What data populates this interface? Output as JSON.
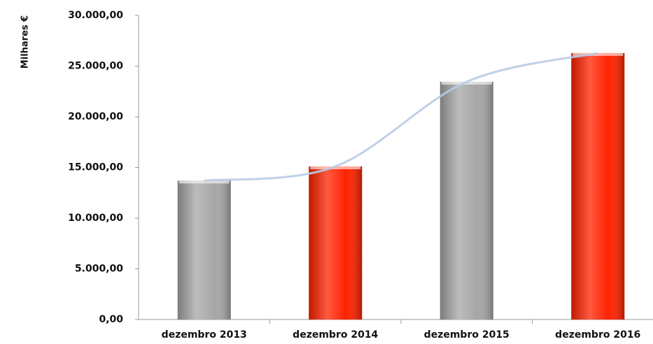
{
  "chart_data": {
    "type": "bar",
    "y_label": "Milhares €",
    "categories": [
      "dezembro 2013",
      "dezembro 2014",
      "dezembro 2015",
      "dezembro 2016"
    ],
    "values": [
      13700,
      15100,
      23450,
      26280
    ],
    "colors": [
      "#a6a6a6",
      "#ff2200",
      "#a6a6a6",
      "#ff2200"
    ],
    "trendline_color": "#b8cce4",
    "ylim": [
      0,
      30000
    ],
    "yticks": [
      {
        "value": 0,
        "label": "0,00"
      },
      {
        "value": 5000,
        "label": "5.000,00"
      },
      {
        "value": 10000,
        "label": "10.000,00"
      },
      {
        "value": 15000,
        "label": "15.000,00"
      },
      {
        "value": 20000,
        "label": "20.000,00"
      },
      {
        "value": 25000,
        "label": "25.000,00"
      },
      {
        "value": 30000,
        "label": "30.000,00"
      }
    ]
  }
}
